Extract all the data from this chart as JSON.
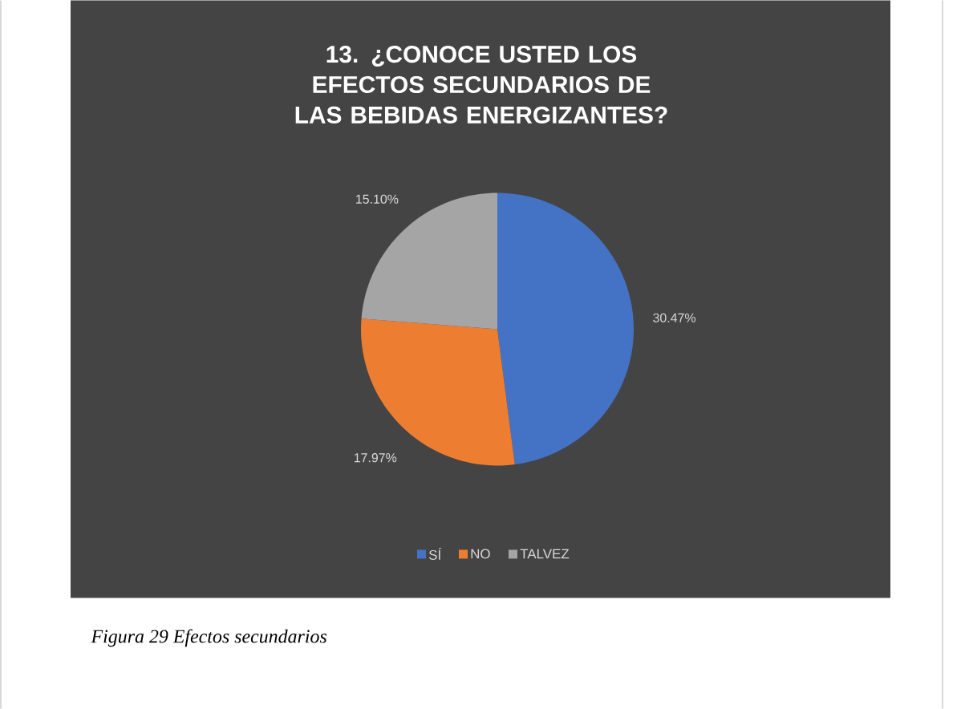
{
  "chart_data": {
    "type": "pie",
    "title": "13. ¿CONOCE USTED LOS EFECTOS SECUNDARIOS DE LAS BEBIDAS ENERGIZANTES?",
    "categories": [
      "SÍ",
      "NO",
      "TALVEZ"
    ],
    "values": [
      30.47,
      17.97,
      15.1
    ],
    "value_labels": [
      "30.47%",
      "17.97%",
      "15.10%"
    ],
    "colors": [
      "#4472c4",
      "#ed7d31",
      "#a5a5a5"
    ],
    "legend": "bottom",
    "annotations": [
      "Figura 29 Efectos secundarios"
    ]
  }
}
